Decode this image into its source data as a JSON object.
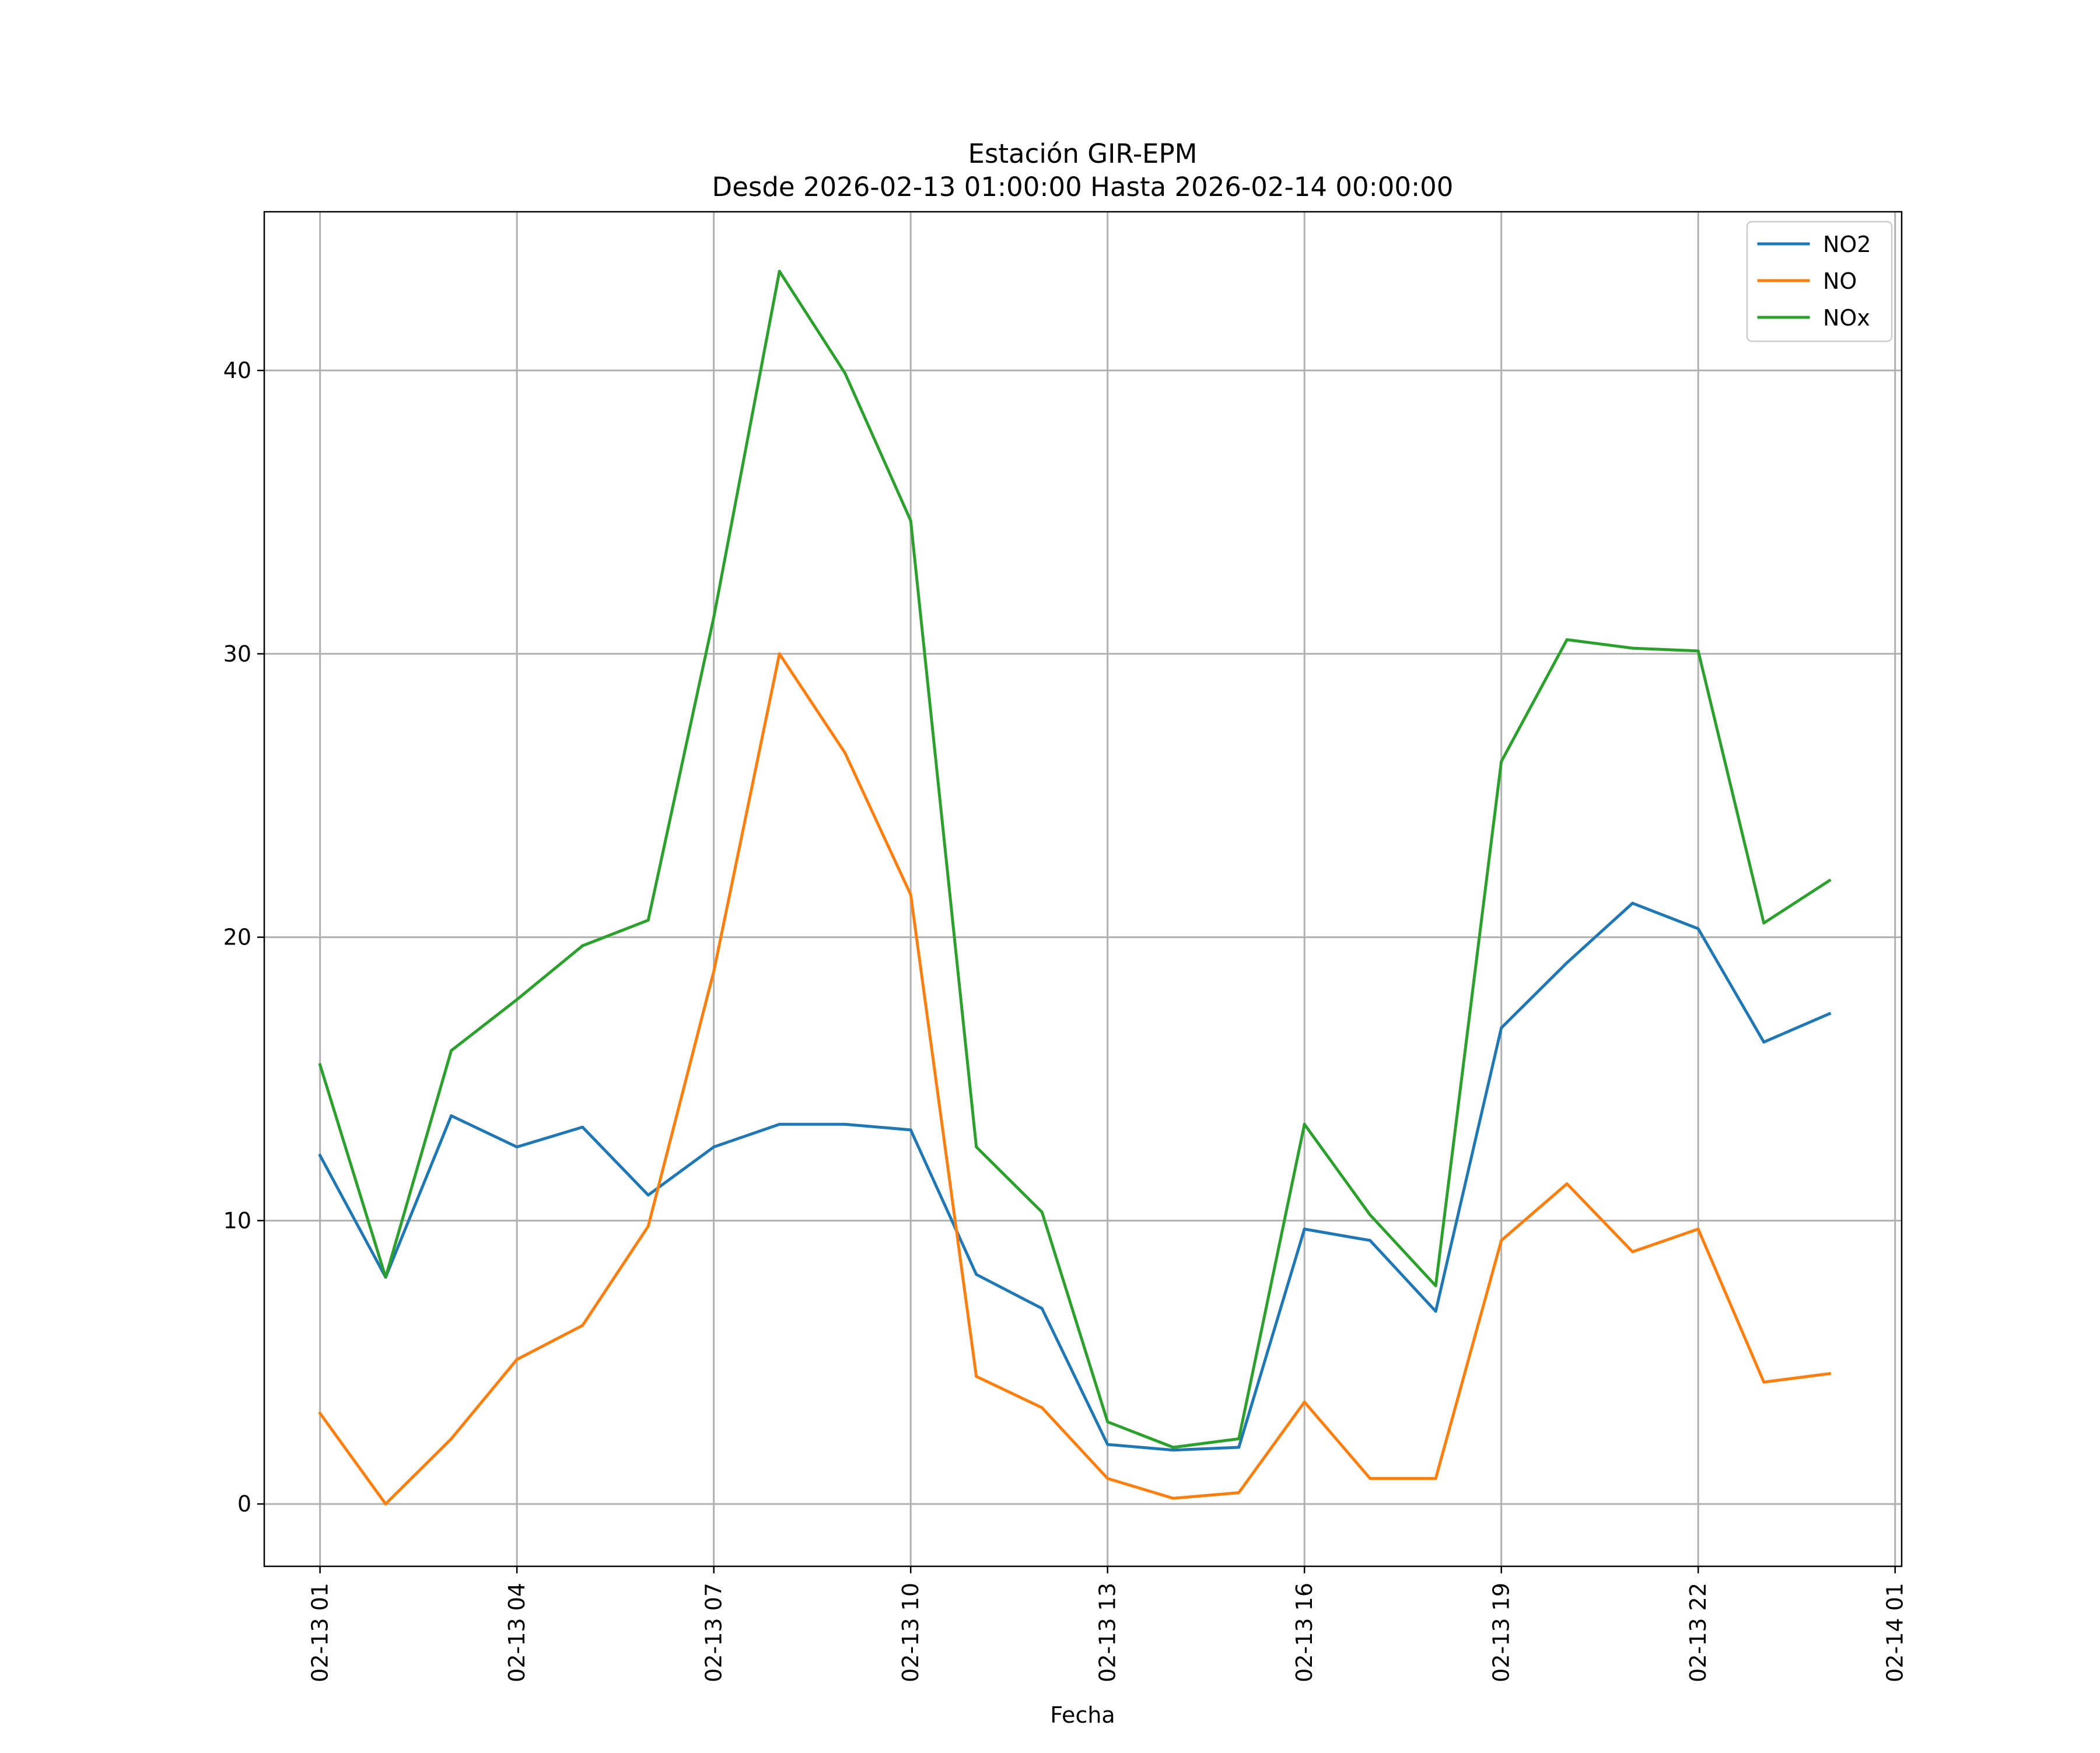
{
  "chart_data": {
    "type": "line",
    "title": "Estación GIR-EPM",
    "subtitle": "Desde 2026-02-13 01:00:00 Hasta 2026-02-14 00:00:00",
    "xlabel": "Fecha",
    "ylabel": "",
    "x": [
      "02-13 01",
      "02-13 02",
      "02-13 03",
      "02-13 04",
      "02-13 05",
      "02-13 06",
      "02-13 07",
      "02-13 08",
      "02-13 09",
      "02-13 10",
      "02-13 11",
      "02-13 12",
      "02-13 13",
      "02-13 14",
      "02-13 15",
      "02-13 16",
      "02-13 17",
      "02-13 18",
      "02-13 19",
      "02-13 20",
      "02-13 21",
      "02-13 22",
      "02-13 23",
      "02-14 00"
    ],
    "x_ticks": [
      "02-13 01",
      "02-13 04",
      "02-13 07",
      "02-13 10",
      "02-13 13",
      "02-13 16",
      "02-13 19",
      "02-13 22",
      "02-14 01"
    ],
    "y_ticks": [
      0,
      10,
      20,
      30,
      40
    ],
    "xlim": [
      "02-13 00:09",
      "02-14 01:06"
    ],
    "ylim": [
      -2.2,
      45.6
    ],
    "grid": true,
    "legend_position": "top-right",
    "series": [
      {
        "name": "NO2",
        "color": "#1f77b4",
        "values": [
          12.3,
          8.0,
          13.7,
          12.6,
          13.3,
          10.9,
          12.6,
          13.4,
          13.4,
          13.2,
          8.1,
          6.9,
          2.1,
          1.9,
          2.0,
          9.7,
          9.3,
          6.8,
          16.8,
          19.1,
          21.2,
          20.3,
          16.3,
          17.3
        ]
      },
      {
        "name": "NO",
        "color": "#ff7f0e",
        "values": [
          3.2,
          0.0,
          2.3,
          5.1,
          6.3,
          9.8,
          18.8,
          30.0,
          26.5,
          21.5,
          4.5,
          3.4,
          0.9,
          0.2,
          0.4,
          3.6,
          0.9,
          0.9,
          9.3,
          11.3,
          8.9,
          9.7,
          4.3,
          4.6
        ]
      },
      {
        "name": "NOx",
        "color": "#2ca02c",
        "values": [
          15.5,
          8.0,
          16.0,
          17.8,
          19.7,
          20.6,
          31.3,
          43.5,
          39.9,
          34.7,
          12.6,
          10.3,
          2.9,
          2.0,
          2.3,
          13.4,
          10.2,
          7.7,
          26.2,
          30.5,
          30.2,
          30.1,
          20.5,
          22.0
        ]
      }
    ]
  }
}
